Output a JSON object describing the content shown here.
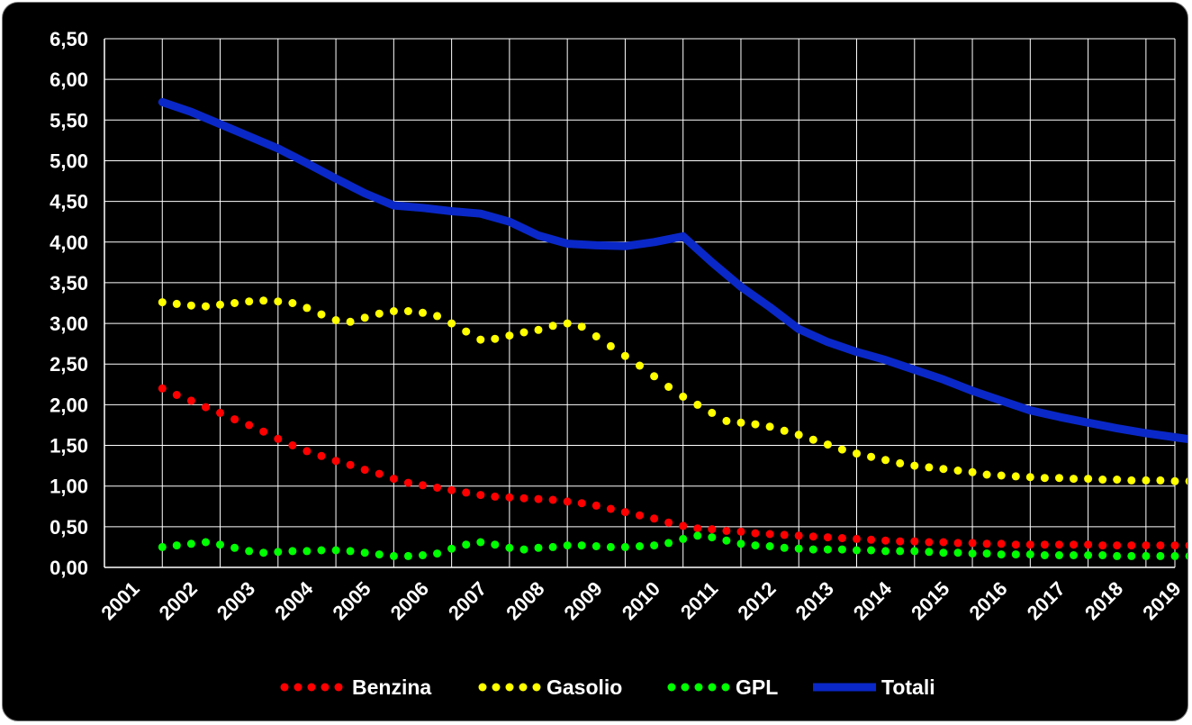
{
  "chart_data": {
    "type": "line",
    "title": "",
    "xlabel": "",
    "ylabel": "",
    "categories": [
      "2001",
      "2002",
      "2003",
      "2004",
      "2005",
      "2006",
      "2007",
      "2008",
      "2009",
      "2010",
      "2011",
      "2012",
      "2013",
      "2014",
      "2015",
      "2016",
      "2017",
      "2018",
      "2019"
    ],
    "y_tick_labels": [
      "0,00",
      "0,50",
      "1,00",
      "1,50",
      "2,00",
      "2,50",
      "3,00",
      "3,50",
      "4,00",
      "4,50",
      "5,00",
      "5,50",
      "6,00",
      "6,50"
    ],
    "ylim": [
      0,
      6.5
    ],
    "grid": true,
    "legend_position": "bottom",
    "background": "#000000",
    "series": [
      {
        "name": "Benzina",
        "style": "dotted",
        "color": "#ff0000",
        "x": [
          2001.5,
          2001.75,
          2002,
          2002.25,
          2002.5,
          2002.75,
          2003,
          2003.25,
          2003.5,
          2003.75,
          2004,
          2004.25,
          2004.5,
          2004.75,
          2005,
          2005.25,
          2005.5,
          2005.75,
          2006,
          2006.25,
          2006.5,
          2006.75,
          2007,
          2007.25,
          2007.5,
          2007.75,
          2008,
          2008.25,
          2008.5,
          2008.75,
          2009,
          2009.25,
          2009.5,
          2009.75,
          2010,
          2010.25,
          2010.5,
          2010.75,
          2011,
          2011.25,
          2011.5,
          2011.75,
          2012,
          2012.25,
          2012.5,
          2012.75,
          2013,
          2013.25,
          2013.5,
          2013.75,
          2014,
          2014.25,
          2014.5,
          2014.75,
          2015,
          2015.25,
          2015.5,
          2015.75,
          2016,
          2016.25,
          2016.5,
          2016.75,
          2017,
          2017.25,
          2017.5,
          2017.75,
          2018,
          2018.25,
          2018.5,
          2018.75,
          2019,
          2019.25,
          2019.5
        ],
        "values": [
          2.2,
          2.12,
          2.05,
          1.97,
          1.9,
          1.82,
          1.75,
          1.67,
          1.58,
          1.5,
          1.43,
          1.37,
          1.31,
          1.26,
          1.2,
          1.15,
          1.09,
          1.04,
          1.01,
          0.98,
          0.95,
          0.92,
          0.89,
          0.87,
          0.86,
          0.85,
          0.84,
          0.83,
          0.81,
          0.79,
          0.76,
          0.72,
          0.68,
          0.64,
          0.6,
          0.55,
          0.51,
          0.48,
          0.47,
          0.45,
          0.44,
          0.42,
          0.41,
          0.4,
          0.39,
          0.38,
          0.37,
          0.36,
          0.35,
          0.34,
          0.33,
          0.32,
          0.32,
          0.31,
          0.31,
          0.3,
          0.3,
          0.29,
          0.29,
          0.28,
          0.28,
          0.28,
          0.28,
          0.28,
          0.28,
          0.27,
          0.27,
          0.27,
          0.27,
          0.27,
          0.27,
          0.27,
          0.27
        ]
      },
      {
        "name": "Gasolio",
        "style": "dotted",
        "color": "#ffff00",
        "x": [
          2001.5,
          2001.75,
          2002,
          2002.25,
          2002.5,
          2002.75,
          2003,
          2003.25,
          2003.5,
          2003.75,
          2004,
          2004.25,
          2004.5,
          2004.75,
          2005,
          2005.25,
          2005.5,
          2005.75,
          2006,
          2006.25,
          2006.5,
          2006.75,
          2007,
          2007.25,
          2007.5,
          2007.75,
          2008,
          2008.25,
          2008.5,
          2008.75,
          2009,
          2009.25,
          2009.5,
          2009.75,
          2010,
          2010.25,
          2010.5,
          2010.75,
          2011,
          2011.25,
          2011.5,
          2011.75,
          2012,
          2012.25,
          2012.5,
          2012.75,
          2013,
          2013.25,
          2013.5,
          2013.75,
          2014,
          2014.25,
          2014.5,
          2014.75,
          2015,
          2015.25,
          2015.5,
          2015.75,
          2016,
          2016.25,
          2016.5,
          2016.75,
          2017,
          2017.25,
          2017.5,
          2017.75,
          2018,
          2018.25,
          2018.5,
          2018.75,
          2019,
          2019.25,
          2019.5
        ],
        "values": [
          3.26,
          3.24,
          3.22,
          3.21,
          3.23,
          3.25,
          3.27,
          3.28,
          3.27,
          3.25,
          3.19,
          3.11,
          3.04,
          3.02,
          3.07,
          3.12,
          3.15,
          3.15,
          3.13,
          3.09,
          3.0,
          2.9,
          2.8,
          2.81,
          2.85,
          2.89,
          2.92,
          2.97,
          3.0,
          2.96,
          2.84,
          2.72,
          2.6,
          2.48,
          2.35,
          2.22,
          2.1,
          2.0,
          1.9,
          1.8,
          1.78,
          1.76,
          1.73,
          1.68,
          1.63,
          1.57,
          1.51,
          1.45,
          1.4,
          1.36,
          1.32,
          1.28,
          1.25,
          1.23,
          1.21,
          1.19,
          1.17,
          1.14,
          1.13,
          1.12,
          1.11,
          1.1,
          1.1,
          1.09,
          1.09,
          1.08,
          1.08,
          1.07,
          1.07,
          1.07,
          1.06,
          1.06,
          1.06
        ]
      },
      {
        "name": "GPL",
        "style": "dotted",
        "color": "#00ff00",
        "x": [
          2001.5,
          2001.75,
          2002,
          2002.25,
          2002.5,
          2002.75,
          2003,
          2003.25,
          2003.5,
          2003.75,
          2004,
          2004.25,
          2004.5,
          2004.75,
          2005,
          2005.25,
          2005.5,
          2005.75,
          2006,
          2006.25,
          2006.5,
          2006.75,
          2007,
          2007.25,
          2007.5,
          2007.75,
          2008,
          2008.25,
          2008.5,
          2008.75,
          2009,
          2009.25,
          2009.5,
          2009.75,
          2010,
          2010.25,
          2010.5,
          2010.75,
          2011,
          2011.25,
          2011.5,
          2011.75,
          2012,
          2012.25,
          2012.5,
          2012.75,
          2013,
          2013.25,
          2013.5,
          2013.75,
          2014,
          2014.25,
          2014.5,
          2014.75,
          2015,
          2015.25,
          2015.5,
          2015.75,
          2016,
          2016.25,
          2016.5,
          2016.75,
          2017,
          2017.25,
          2017.5,
          2017.75,
          2018,
          2018.25,
          2018.5,
          2018.75,
          2019,
          2019.25,
          2019.5
        ],
        "values": [
          0.25,
          0.27,
          0.29,
          0.31,
          0.28,
          0.24,
          0.2,
          0.18,
          0.19,
          0.2,
          0.2,
          0.21,
          0.21,
          0.2,
          0.18,
          0.16,
          0.14,
          0.14,
          0.15,
          0.17,
          0.23,
          0.28,
          0.31,
          0.28,
          0.24,
          0.22,
          0.24,
          0.25,
          0.27,
          0.27,
          0.26,
          0.25,
          0.25,
          0.26,
          0.27,
          0.3,
          0.35,
          0.39,
          0.37,
          0.33,
          0.29,
          0.27,
          0.26,
          0.24,
          0.23,
          0.22,
          0.22,
          0.22,
          0.21,
          0.21,
          0.2,
          0.2,
          0.2,
          0.19,
          0.18,
          0.18,
          0.17,
          0.17,
          0.16,
          0.16,
          0.16,
          0.15,
          0.15,
          0.15,
          0.15,
          0.15,
          0.14,
          0.14,
          0.14,
          0.14,
          0.14,
          0.14,
          0.14
        ]
      },
      {
        "name": "Totali",
        "style": "solid",
        "color": "#0a28c8",
        "x": [
          2001.5,
          2002,
          2002.5,
          2003,
          2003.5,
          2004,
          2004.5,
          2005,
          2005.5,
          2006,
          2006.5,
          2007,
          2007.5,
          2008,
          2008.5,
          2009,
          2009.5,
          2010,
          2010.5,
          2011,
          2011.5,
          2012,
          2012.5,
          2013,
          2013.5,
          2014,
          2014.5,
          2015,
          2015.5,
          2016,
          2016.5,
          2017,
          2017.5,
          2018,
          2018.5,
          2019,
          2019.5
        ],
        "values": [
          5.72,
          5.6,
          5.45,
          5.3,
          5.15,
          4.97,
          4.78,
          4.6,
          4.45,
          4.42,
          4.38,
          4.35,
          4.25,
          4.08,
          3.98,
          3.96,
          3.95,
          4.0,
          4.07,
          3.75,
          3.45,
          3.2,
          2.93,
          2.77,
          2.65,
          2.55,
          2.43,
          2.31,
          2.17,
          2.05,
          1.93,
          1.85,
          1.78,
          1.71,
          1.65,
          1.6,
          1.55
        ]
      }
    ]
  }
}
